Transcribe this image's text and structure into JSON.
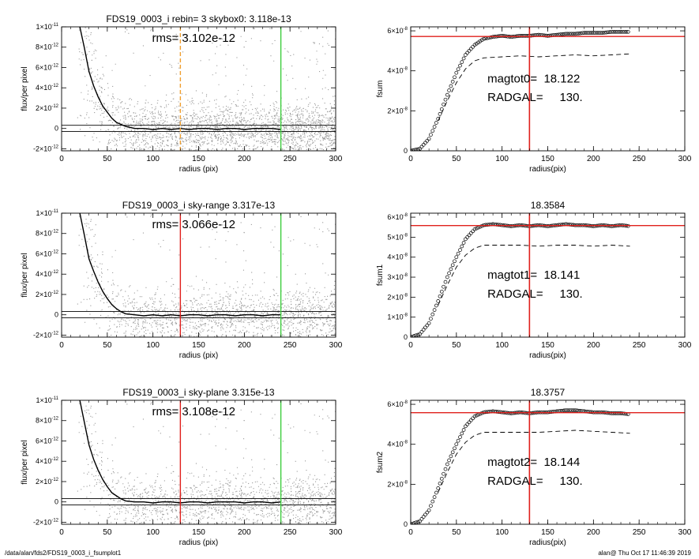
{
  "footer": {
    "path": "/data/alan/fds2/FDS19_0003_i_fsumplot1",
    "stamp": "alan@  Thu Oct 17 11:46:39 2019"
  },
  "colors": {
    "red": "#e0201c",
    "green": "#3ccc3c",
    "orange": "#f0a030",
    "scatter": "#9a9a9a",
    "points": "#000000"
  },
  "chart_data": [
    {
      "type": "scatter",
      "panel": "left-top",
      "title": "FDS19_0003_i rebin= 3    skybox0:  3.118e-13",
      "annotation": "rms= 3.102e-12",
      "xlabel": "radius (pix)",
      "ylabel": "flux/per pixel",
      "xlim": [
        0,
        300
      ],
      "ylim": [
        -2.2e-12,
        1e-11
      ],
      "xticks": [
        0,
        50,
        100,
        150,
        200,
        250,
        300
      ],
      "yticks": [
        {
          "v": -2e-12,
          "m": "-2×10",
          "e": "-12"
        },
        {
          "v": 0,
          "m": "0",
          "e": ""
        },
        {
          "v": 2e-12,
          "m": "2×10",
          "e": "-12"
        },
        {
          "v": 4e-12,
          "m": "4×10",
          "e": "-12"
        },
        {
          "v": 6e-12,
          "m": "6×10",
          "e": "-12"
        },
        {
          "v": 8e-12,
          "m": "8×10",
          "e": "-12"
        },
        {
          "v": 1e-11,
          "m": "1×10",
          "e": "-11"
        }
      ],
      "profile": [
        [
          20,
          1e-11
        ],
        [
          25,
          7.9e-12
        ],
        [
          30,
          5.6e-12
        ],
        [
          35,
          4.2e-12
        ],
        [
          40,
          3.1e-12
        ],
        [
          45,
          2.2e-12
        ],
        [
          50,
          1.6e-12
        ],
        [
          55,
          1e-12
        ],
        [
          60,
          6e-13
        ],
        [
          65,
          4e-13
        ],
        [
          70,
          2e-13
        ],
        [
          80,
          0
        ],
        [
          90,
          0
        ],
        [
          100,
          -1e-13
        ],
        [
          110,
          0
        ],
        [
          120,
          -1e-13
        ],
        [
          130,
          0
        ],
        [
          140,
          -1e-13
        ],
        [
          150,
          0
        ],
        [
          160,
          0
        ],
        [
          170,
          -1e-13
        ],
        [
          180,
          0
        ],
        [
          190,
          0
        ],
        [
          200,
          -1e-13
        ],
        [
          210,
          0
        ],
        [
          220,
          0
        ],
        [
          230,
          0
        ],
        [
          240,
          -1e-13
        ]
      ],
      "hlines": [
        3.118e-13,
        -3e-13
      ],
      "vlines": [
        {
          "x": 130,
          "color": "orange",
          "dashed": true
        },
        {
          "x": 240,
          "color": "green",
          "dashed": false
        }
      ]
    },
    {
      "type": "scatter",
      "panel": "left-middle",
      "title": "FDS19_0003_i sky-range  3.317e-13",
      "annotation": "rms= 3.066e-12",
      "xlabel": "radius (pix)",
      "ylabel": "flux/per pixel",
      "xlim": [
        0,
        300
      ],
      "ylim": [
        -2.2e-12,
        1e-11
      ],
      "xticks": [
        0,
        50,
        100,
        150,
        200,
        250,
        300
      ],
      "yticks": [
        {
          "v": -2e-12,
          "m": "-2×10",
          "e": "-12"
        },
        {
          "v": 0,
          "m": "0",
          "e": ""
        },
        {
          "v": 2e-12,
          "m": "2×10",
          "e": "-12"
        },
        {
          "v": 4e-12,
          "m": "4×10",
          "e": "-12"
        },
        {
          "v": 6e-12,
          "m": "6×10",
          "e": "-12"
        },
        {
          "v": 8e-12,
          "m": "8×10",
          "e": "-12"
        },
        {
          "v": 1e-11,
          "m": "1×10",
          "e": "-11"
        }
      ],
      "profile": [
        [
          20,
          1e-11
        ],
        [
          25,
          7.8e-12
        ],
        [
          30,
          5.5e-12
        ],
        [
          35,
          4.3e-12
        ],
        [
          40,
          3.2e-12
        ],
        [
          45,
          2.3e-12
        ],
        [
          50,
          1.6e-12
        ],
        [
          55,
          1e-12
        ],
        [
          60,
          6e-13
        ],
        [
          65,
          3e-13
        ],
        [
          70,
          1e-13
        ],
        [
          80,
          0
        ],
        [
          90,
          -1e-13
        ],
        [
          100,
          0
        ],
        [
          110,
          -1e-13
        ],
        [
          120,
          0
        ],
        [
          130,
          -1e-13
        ],
        [
          140,
          0
        ],
        [
          150,
          0
        ],
        [
          160,
          -1e-13
        ],
        [
          170,
          0
        ],
        [
          180,
          0
        ],
        [
          190,
          -1e-13
        ],
        [
          200,
          0
        ],
        [
          210,
          0
        ],
        [
          220,
          -1e-13
        ],
        [
          230,
          0
        ],
        [
          240,
          0
        ]
      ],
      "hlines": [
        3.317e-13,
        -3e-13
      ],
      "vlines": [
        {
          "x": 130,
          "color": "red",
          "dashed": false
        },
        {
          "x": 240,
          "color": "green",
          "dashed": false
        }
      ]
    },
    {
      "type": "scatter",
      "panel": "left-bottom",
      "title": "FDS19_0003_i sky-plane  3.315e-13",
      "annotation": "rms= 3.108e-12",
      "xlabel": "radius (pix)",
      "ylabel": "flux/per pixel",
      "xlim": [
        0,
        300
      ],
      "ylim": [
        -2.2e-12,
        1e-11
      ],
      "xticks": [
        0,
        50,
        100,
        150,
        200,
        250,
        300
      ],
      "yticks": [
        {
          "v": -2e-12,
          "m": "-2×10",
          "e": "-12"
        },
        {
          "v": 0,
          "m": "0",
          "e": ""
        },
        {
          "v": 2e-12,
          "m": "2×10",
          "e": "-12"
        },
        {
          "v": 4e-12,
          "m": "4×10",
          "e": "-12"
        },
        {
          "v": 6e-12,
          "m": "6×10",
          "e": "-12"
        },
        {
          "v": 8e-12,
          "m": "8×10",
          "e": "-12"
        },
        {
          "v": 1e-11,
          "m": "1×10",
          "e": "-11"
        }
      ],
      "profile": [
        [
          20,
          1e-11
        ],
        [
          25,
          7.8e-12
        ],
        [
          30,
          5.6e-12
        ],
        [
          35,
          4.2e-12
        ],
        [
          40,
          3.1e-12
        ],
        [
          45,
          2.2e-12
        ],
        [
          50,
          1.5e-12
        ],
        [
          55,
          9e-13
        ],
        [
          60,
          6e-13
        ],
        [
          65,
          3e-13
        ],
        [
          70,
          1e-13
        ],
        [
          80,
          0
        ],
        [
          90,
          0
        ],
        [
          100,
          -1e-13
        ],
        [
          110,
          0
        ],
        [
          120,
          0
        ],
        [
          130,
          -1e-13
        ],
        [
          140,
          0
        ],
        [
          150,
          0
        ],
        [
          160,
          -1e-13
        ],
        [
          170,
          0
        ],
        [
          180,
          0
        ],
        [
          190,
          0
        ],
        [
          200,
          -1e-13
        ],
        [
          210,
          0
        ],
        [
          220,
          0
        ],
        [
          230,
          -1e-13
        ],
        [
          240,
          0
        ]
      ],
      "hlines": [
        3.315e-13,
        -3e-13
      ],
      "vlines": [
        {
          "x": 130,
          "color": "red",
          "dashed": false
        },
        {
          "x": 240,
          "color": "green",
          "dashed": false
        }
      ]
    },
    {
      "type": "line",
      "panel": "right-top",
      "title": "",
      "ylabel": "fsum",
      "xlabel": "radius(pix)",
      "annotations": [
        "magtot0=  18.122",
        "RADGAL=     130."
      ],
      "xlim": [
        0,
        300
      ],
      "ylim": [
        0,
        6.2e-08
      ],
      "xticks": [
        0,
        50,
        100,
        150,
        200,
        250,
        300
      ],
      "yticks": [
        {
          "v": 0,
          "m": "0",
          "e": ""
        },
        {
          "v": 2e-08,
          "m": "2×10",
          "e": "-8"
        },
        {
          "v": 4e-08,
          "m": "4×10",
          "e": "-8"
        },
        {
          "v": 6e-08,
          "m": "6×10",
          "e": "-8"
        }
      ],
      "fsum": [
        [
          0,
          0
        ],
        [
          10,
          1e-09
        ],
        [
          20,
          6e-09
        ],
        [
          30,
          1.6e-08
        ],
        [
          40,
          2.8e-08
        ],
        [
          50,
          3.9e-08
        ],
        [
          60,
          4.8e-08
        ],
        [
          70,
          5.3e-08
        ],
        [
          80,
          5.6e-08
        ],
        [
          90,
          5.7e-08
        ],
        [
          100,
          5.75e-08
        ],
        [
          110,
          5.7e-08
        ],
        [
          120,
          5.75e-08
        ],
        [
          130,
          5.75e-08
        ],
        [
          140,
          5.8e-08
        ],
        [
          150,
          5.75e-08
        ],
        [
          160,
          5.8e-08
        ],
        [
          170,
          5.85e-08
        ],
        [
          180,
          5.85e-08
        ],
        [
          190,
          5.9e-08
        ],
        [
          200,
          5.9e-08
        ],
        [
          210,
          5.9e-08
        ],
        [
          220,
          5.95e-08
        ],
        [
          230,
          5.95e-08
        ],
        [
          240,
          5.95e-08
        ]
      ],
      "dashed": [
        [
          30,
          1.5e-08
        ],
        [
          40,
          2.5e-08
        ],
        [
          50,
          3.4e-08
        ],
        [
          60,
          4.1e-08
        ],
        [
          70,
          4.5e-08
        ],
        [
          80,
          4.65e-08
        ],
        [
          100,
          4.7e-08
        ],
        [
          120,
          4.75e-08
        ],
        [
          140,
          4.7e-08
        ],
        [
          160,
          4.75e-08
        ],
        [
          180,
          4.8e-08
        ],
        [
          200,
          4.75e-08
        ],
        [
          220,
          4.8e-08
        ],
        [
          240,
          4.85e-08
        ]
      ],
      "hline": 5.72e-08,
      "vline": 130
    },
    {
      "type": "line",
      "panel": "right-middle",
      "title": "18.3584",
      "ylabel": "fsum1",
      "xlabel": "radius(pix)",
      "annotations": [
        "magtot1=  18.141",
        "RADGAL=     130."
      ],
      "xlim": [
        0,
        300
      ],
      "ylim": [
        0,
        6.2e-08
      ],
      "xticks": [
        0,
        50,
        100,
        150,
        200,
        250,
        300
      ],
      "yticks": [
        {
          "v": 0,
          "m": "0",
          "e": ""
        },
        {
          "v": 1e-08,
          "m": "1×10",
          "e": "-8"
        },
        {
          "v": 2e-08,
          "m": "2×10",
          "e": "-8"
        },
        {
          "v": 3e-08,
          "m": "3×10",
          "e": "-8"
        },
        {
          "v": 4e-08,
          "m": "4×10",
          "e": "-8"
        },
        {
          "v": 5e-08,
          "m": "5×10",
          "e": "-8"
        },
        {
          "v": 6e-08,
          "m": "6×10",
          "e": "-8"
        }
      ],
      "fsum": [
        [
          0,
          0
        ],
        [
          10,
          1.5e-09
        ],
        [
          20,
          7e-09
        ],
        [
          30,
          1.8e-08
        ],
        [
          40,
          3e-08
        ],
        [
          50,
          4e-08
        ],
        [
          60,
          4.9e-08
        ],
        [
          70,
          5.4e-08
        ],
        [
          80,
          5.6e-08
        ],
        [
          90,
          5.65e-08
        ],
        [
          100,
          5.6e-08
        ],
        [
          110,
          5.55e-08
        ],
        [
          120,
          5.6e-08
        ],
        [
          130,
          5.55e-08
        ],
        [
          140,
          5.6e-08
        ],
        [
          150,
          5.55e-08
        ],
        [
          160,
          5.6e-08
        ],
        [
          170,
          5.65e-08
        ],
        [
          180,
          5.6e-08
        ],
        [
          190,
          5.6e-08
        ],
        [
          200,
          5.55e-08
        ],
        [
          210,
          5.6e-08
        ],
        [
          220,
          5.55e-08
        ],
        [
          230,
          5.6e-08
        ],
        [
          240,
          5.55e-08
        ]
      ],
      "dashed": [
        [
          30,
          1.6e-08
        ],
        [
          40,
          2.6e-08
        ],
        [
          50,
          3.5e-08
        ],
        [
          60,
          4.1e-08
        ],
        [
          70,
          4.45e-08
        ],
        [
          80,
          4.6e-08
        ],
        [
          100,
          4.6e-08
        ],
        [
          120,
          4.6e-08
        ],
        [
          140,
          4.55e-08
        ],
        [
          160,
          4.6e-08
        ],
        [
          180,
          4.6e-08
        ],
        [
          200,
          4.55e-08
        ],
        [
          220,
          4.6e-08
        ],
        [
          240,
          4.55e-08
        ]
      ],
      "hline": 5.58e-08,
      "vline": 130
    },
    {
      "type": "line",
      "panel": "right-bottom",
      "title": "18.3757",
      "ylabel": "fsum2",
      "xlabel": "radius(pix)",
      "annotations": [
        "magtot2=  18.144",
        "RADGAL=     130."
      ],
      "xlim": [
        0,
        300
      ],
      "ylim": [
        0,
        6.2e-08
      ],
      "xticks": [
        0,
        50,
        100,
        150,
        200,
        250,
        300
      ],
      "yticks": [
        {
          "v": 0,
          "m": "0",
          "e": ""
        },
        {
          "v": 2e-08,
          "m": "2×10",
          "e": "-8"
        },
        {
          "v": 4e-08,
          "m": "4×10",
          "e": "-8"
        },
        {
          "v": 6e-08,
          "m": "6×10",
          "e": "-8"
        }
      ],
      "fsum": [
        [
          0,
          0
        ],
        [
          10,
          1.5e-09
        ],
        [
          20,
          7e-09
        ],
        [
          30,
          1.8e-08
        ],
        [
          40,
          3e-08
        ],
        [
          50,
          4e-08
        ],
        [
          60,
          4.9e-08
        ],
        [
          70,
          5.4e-08
        ],
        [
          80,
          5.6e-08
        ],
        [
          90,
          5.65e-08
        ],
        [
          100,
          5.6e-08
        ],
        [
          110,
          5.55e-08
        ],
        [
          120,
          5.6e-08
        ],
        [
          130,
          5.55e-08
        ],
        [
          140,
          5.6e-08
        ],
        [
          150,
          5.6e-08
        ],
        [
          160,
          5.65e-08
        ],
        [
          170,
          5.7e-08
        ],
        [
          180,
          5.7e-08
        ],
        [
          190,
          5.65e-08
        ],
        [
          200,
          5.6e-08
        ],
        [
          210,
          5.6e-08
        ],
        [
          220,
          5.55e-08
        ],
        [
          230,
          5.55e-08
        ],
        [
          240,
          5.5e-08
        ]
      ],
      "dashed": [
        [
          30,
          1.6e-08
        ],
        [
          40,
          2.6e-08
        ],
        [
          50,
          3.5e-08
        ],
        [
          60,
          4.1e-08
        ],
        [
          70,
          4.45e-08
        ],
        [
          80,
          4.6e-08
        ],
        [
          100,
          4.6e-08
        ],
        [
          120,
          4.6e-08
        ],
        [
          140,
          4.6e-08
        ],
        [
          160,
          4.65e-08
        ],
        [
          180,
          4.7e-08
        ],
        [
          200,
          4.65e-08
        ],
        [
          220,
          4.6e-08
        ],
        [
          240,
          4.55e-08
        ]
      ],
      "hline": 5.58e-08,
      "vline": 130
    }
  ]
}
